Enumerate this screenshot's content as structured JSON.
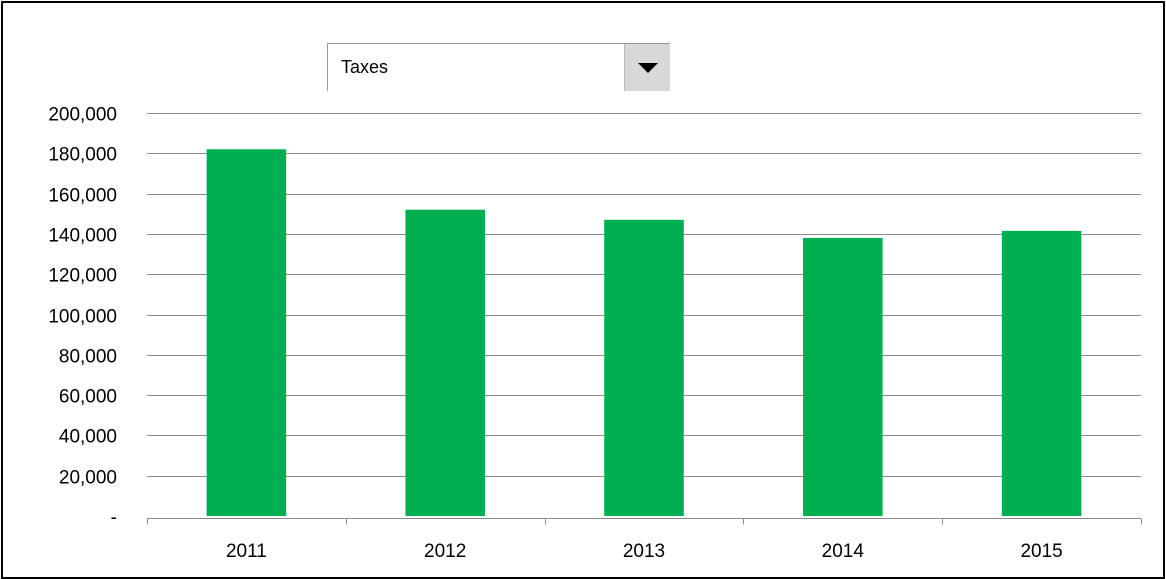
{
  "dropdown": {
    "selected": "Taxes",
    "icon": "chevron-down-icon"
  },
  "chart_data": {
    "type": "bar",
    "categories": [
      "2011",
      "2012",
      "2013",
      "2014",
      "2015"
    ],
    "values": [
      182000,
      152000,
      147000,
      138000,
      141500
    ],
    "ylim": [
      0,
      200000
    ],
    "yticks": [
      0,
      20000,
      40000,
      60000,
      80000,
      100000,
      120000,
      140000,
      160000,
      180000,
      200000
    ],
    "ytick_labels": [
      "-",
      "20,000",
      "40,000",
      "60,000",
      "80,000",
      "100,000",
      "120,000",
      "140,000",
      "160,000",
      "180,000",
      "200,000"
    ],
    "bar_color": "#00b050",
    "grid": true,
    "legend": "none"
  }
}
